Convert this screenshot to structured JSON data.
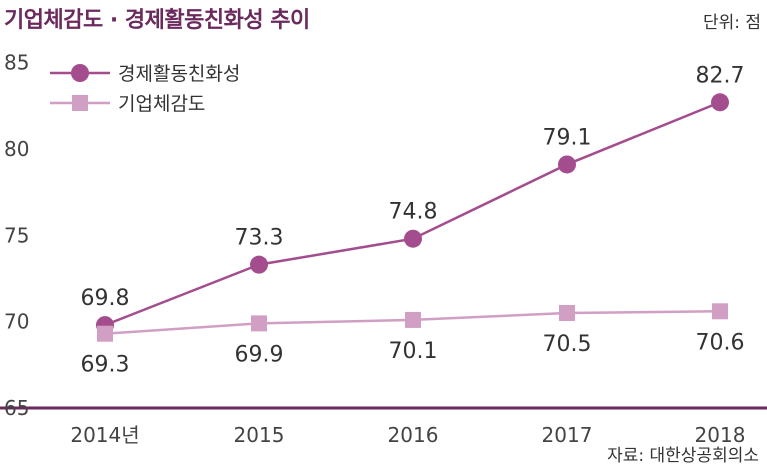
{
  "header": {
    "title": "기업체감도 · 경제활동친화성 추이",
    "unit": "단위: 점"
  },
  "footer": {
    "source": "자료: 대한상공회의소"
  },
  "colors": {
    "series1": "#a34d8e",
    "series2": "#d19ec4",
    "axis": "#6b2a5e"
  },
  "chart_data": {
    "type": "line",
    "categories": [
      "2014년",
      "2015",
      "2016",
      "2017",
      "2018"
    ],
    "ylim": [
      65,
      87
    ],
    "yticks": [
      65,
      70,
      75,
      80,
      85
    ],
    "grid": false,
    "legend": "top-left",
    "series": [
      {
        "name": "경제활동친화성",
        "marker": "circle",
        "values": [
          69.8,
          73.3,
          74.8,
          79.1,
          82.7
        ]
      },
      {
        "name": "기업체감도",
        "marker": "square",
        "values": [
          69.3,
          69.9,
          70.1,
          70.5,
          70.6
        ]
      }
    ]
  }
}
